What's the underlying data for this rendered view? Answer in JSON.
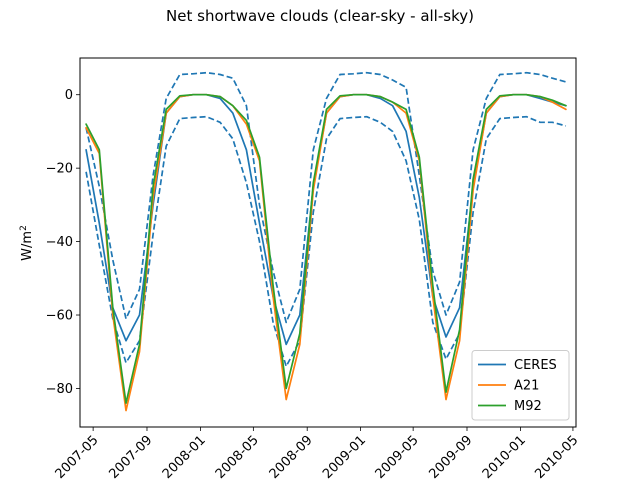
{
  "chart_data": {
    "type": "line",
    "title": "Net shortwave clouds (clear-sky - all-sky)",
    "ylabel_base": "W/m",
    "ylabel_sup": "2",
    "xlabel": "",
    "ylim": [
      -90.5,
      10
    ],
    "xlim": [
      "2007-04-01",
      "2010-05-08"
    ],
    "x_ticks": [
      "2007-05",
      "2007-09",
      "2008-01",
      "2008-05",
      "2008-09",
      "2009-01",
      "2009-05",
      "2009-09",
      "2010-01",
      "2010-05"
    ],
    "y_ticks": [
      0,
      -20,
      -40,
      -60,
      -80
    ],
    "legend": "lower-right",
    "x": [
      "2007-04-15",
      "2007-05-15",
      "2007-06-15",
      "2007-07-15",
      "2007-08-15",
      "2007-09-15",
      "2007-10-15",
      "2007-11-15",
      "2007-12-15",
      "2008-01-15",
      "2008-02-15",
      "2008-03-15",
      "2008-04-15",
      "2008-05-15",
      "2008-06-15",
      "2008-07-15",
      "2008-08-15",
      "2008-09-15",
      "2008-10-15",
      "2008-11-15",
      "2008-12-15",
      "2009-01-15",
      "2009-02-15",
      "2009-03-15",
      "2009-04-15",
      "2009-05-15",
      "2009-06-15",
      "2009-07-15",
      "2009-08-15",
      "2009-09-15",
      "2009-10-15",
      "2009-11-15",
      "2009-12-15",
      "2010-01-15",
      "2010-02-15",
      "2010-03-15",
      "2010-04-15"
    ],
    "series": [
      {
        "name": "CERES",
        "color": "#1f77b4",
        "style": "solid",
        "values": [
          -15,
          -35,
          -58,
          -67,
          -60,
          -30,
          -5,
          -0.5,
          0,
          0,
          -1,
          -5,
          -15,
          -35,
          -55,
          -68,
          -60,
          -25,
          -5,
          -0.5,
          0,
          0,
          -1,
          -3,
          -10,
          -28,
          -55,
          -66,
          -58,
          -25,
          -5,
          -0.5,
          0,
          0,
          -1,
          -2,
          -3
        ]
      },
      {
        "name": "CERES upper",
        "color": "#1f77b4",
        "style": "dashed",
        "values": [
          -9,
          -25,
          -45,
          -61,
          -53,
          -22,
          -1,
          5.5,
          5.7,
          6,
          5.5,
          4.5,
          -3,
          -30,
          -48,
          -62,
          -53,
          -15,
          -1,
          5.5,
          5.7,
          6,
          5.5,
          4,
          2,
          -22,
          -48,
          -60,
          -51,
          -15,
          -1,
          5.5,
          5.7,
          6,
          5.5,
          4.5,
          3.5
        ]
      },
      {
        "name": "CERES lower",
        "color": "#1f77b4",
        "style": "dashed",
        "values": [
          -21,
          -41,
          -61,
          -73,
          -67,
          -38,
          -14,
          -6.5,
          -6.2,
          -6,
          -7.5,
          -12,
          -24,
          -40,
          -62,
          -74,
          -67,
          -32,
          -12,
          -6.5,
          -6.2,
          -6,
          -7.5,
          -10,
          -18,
          -34,
          -62,
          -72,
          -65,
          -32,
          -12,
          -6.5,
          -6.2,
          -6,
          -7.5,
          -7.5,
          -8.5
        ]
      },
      {
        "name": "A21",
        "color": "#ff7f0e",
        "style": "solid",
        "values": [
          -9,
          -16,
          -60,
          -86,
          -70,
          -28,
          -5,
          -0.5,
          0,
          0,
          -0.5,
          -3,
          -8,
          -18,
          -55,
          -83,
          -68,
          -26,
          -5,
          -0.5,
          0,
          0,
          -0.5,
          -2,
          -5,
          -18,
          -55,
          -83,
          -67,
          -26,
          -5,
          -0.5,
          0,
          0,
          -0.5,
          -2,
          -4
        ]
      },
      {
        "name": "M92",
        "color": "#2ca02c",
        "style": "solid",
        "values": [
          -8,
          -15,
          -58,
          -84,
          -68,
          -25,
          -4,
          -0.3,
          0,
          0,
          -0.5,
          -3,
          -7,
          -17,
          -52,
          -80,
          -65,
          -24,
          -4,
          -0.3,
          0,
          0,
          -0.5,
          -2,
          -4,
          -17,
          -52,
          -81,
          -64,
          -23,
          -4,
          -0.3,
          0,
          0,
          -0.5,
          -1.5,
          -3
        ]
      }
    ],
    "legend_entries": [
      "CERES",
      "A21",
      "M92"
    ]
  }
}
